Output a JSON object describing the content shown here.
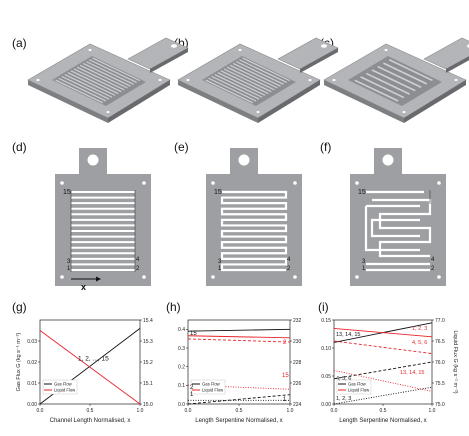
{
  "panel_labels": {
    "a": "(a)",
    "b": "(b)",
    "c": "(c)",
    "d": "(d)",
    "e": "(e)",
    "f": "(f)",
    "g": "(g)",
    "h": "(h)",
    "i": "(i)"
  },
  "plate_annotations": {
    "d": {
      "top": "15",
      "right": "4",
      "right2": "2",
      "left1": "3",
      "left2": "1",
      "axis_x": "x"
    },
    "e": {
      "top": "15",
      "right": "4",
      "right2": "2",
      "left1": "3",
      "left2": "1"
    },
    "f": {
      "top": "15",
      "right": "4",
      "right2": "2",
      "left1": "3",
      "left2": "1"
    }
  },
  "colors": {
    "gas": "#111111",
    "liquid": "#e8232a",
    "plate": "#9e9fa2",
    "channel": "#ffffff"
  },
  "chart_data": [
    {
      "type": "line",
      "panel": "(g)",
      "xlabel": "Channel Length Normalised, x",
      "ylabel": "Gas Flux G (kg s⁻¹ m⁻²)",
      "y2label": "",
      "xlim": [
        0.0,
        1.0
      ],
      "ylim": [
        0.0,
        0.04
      ],
      "y2lim": [
        15.0,
        15.4
      ],
      "x_ticks": [
        "0.0",
        "0.5",
        "1.0"
      ],
      "y_ticks": [
        "0.00",
        "0.01",
        "0.02",
        "0.03"
      ],
      "y2_ticks": [
        "15.0",
        "15.1",
        "15.2",
        "15.3",
        "15.4"
      ],
      "legend": [
        "Gas Flow",
        "Liquid Flow"
      ],
      "annotation": "1, 2, ..., 15",
      "series": [
        {
          "name": "Gas Flow",
          "axis": "left",
          "x": [
            0.0,
            1.0
          ],
          "y": [
            0.0,
            0.036
          ]
        },
        {
          "name": "Liquid Flow",
          "axis": "right",
          "x": [
            0.0,
            1.0
          ],
          "y": [
            15.35,
            15.0
          ]
        }
      ]
    },
    {
      "type": "line",
      "panel": "(h)",
      "xlabel": "Length Serpentine Normalised, x",
      "ylabel": "",
      "y2label": "",
      "xlim": [
        0.0,
        1.0
      ],
      "ylim": [
        0.0,
        0.45
      ],
      "y2lim": [
        224,
        232
      ],
      "x_ticks": [
        "0.0",
        "0.5",
        "1.0"
      ],
      "y_ticks": [
        "0.0",
        "0.1",
        "0.2",
        "0.3",
        "0.4"
      ],
      "y2_ticks": [
        "224",
        "226",
        "228",
        "230",
        "232"
      ],
      "legend": [
        "Gas Flow",
        "Liquid Flow"
      ],
      "annotations": [
        "15",
        "1",
        "2",
        "15",
        "2",
        "1"
      ],
      "series": [
        {
          "name": "Gas Flow",
          "axis": "left",
          "x": [
            0.0,
            1.0
          ],
          "y": [
            0.39,
            0.4
          ]
        },
        {
          "name": "Gas Flow",
          "axis": "left",
          "x": [
            0.0,
            1.0
          ],
          "y": [
            0.0,
            0.05
          ]
        },
        {
          "name": "Gas Flow",
          "axis": "left",
          "x": [
            0.0,
            1.0
          ],
          "y": [
            0.02,
            0.02
          ]
        },
        {
          "name": "Liquid Flow",
          "axis": "right",
          "x": [
            0.0,
            1.0
          ],
          "y": [
            230.5,
            230.3
          ]
        },
        {
          "name": "Liquid Flow",
          "axis": "right",
          "x": [
            0.0,
            1.0
          ],
          "y": [
            230.2,
            229.9
          ]
        },
        {
          "name": "Liquid Flow",
          "axis": "right",
          "x": [
            0.0,
            1.0
          ],
          "y": [
            225.8,
            225.4
          ]
        }
      ]
    },
    {
      "type": "line",
      "panel": "(i)",
      "xlabel": "Length Serpentine Normalised, x",
      "ylabel": "",
      "y2label": "Liquid Flux G (kg s⁻¹ m⁻²)",
      "xlim": [
        0.0,
        1.0
      ],
      "ylim": [
        0.0,
        0.15
      ],
      "y2lim": [
        75.0,
        77.0
      ],
      "x_ticks": [
        "0.0",
        "0.5",
        "1.0"
      ],
      "y_ticks": [
        "0.00",
        "0.05",
        "0.10",
        "0.15"
      ],
      "y2_ticks": [
        "75.0",
        "75.5",
        "76.0",
        "76.5",
        "77.0"
      ],
      "legend": [
        "Gas Flow",
        "Liquid Flow"
      ],
      "annotations": [
        "1, 2, 3",
        "13, 14, 15",
        "4, 5, 6",
        "1, 2, 3",
        "4, 5, 6",
        "13, 14, 15"
      ],
      "series": [
        {
          "name": "Gas Flow",
          "axis": "left",
          "x": [
            0.0,
            1.0
          ],
          "y": [
            0.11,
            0.145
          ]
        },
        {
          "name": "Gas Flow",
          "axis": "left",
          "x": [
            0.0,
            1.0
          ],
          "y": [
            0.045,
            0.075
          ]
        },
        {
          "name": "Gas Flow",
          "axis": "left",
          "x": [
            0.0,
            1.0
          ],
          "y": [
            0.0,
            0.03
          ]
        },
        {
          "name": "Liquid Flow",
          "axis": "right",
          "x": [
            0.0,
            1.0
          ],
          "y": [
            76.8,
            76.6
          ]
        },
        {
          "name": "Liquid Flow",
          "axis": "right",
          "x": [
            0.0,
            1.0
          ],
          "y": [
            76.5,
            76.2
          ]
        },
        {
          "name": "Liquid Flow",
          "axis": "right",
          "x": [
            0.0,
            1.0
          ],
          "y": [
            75.8,
            75.3
          ]
        }
      ]
    }
  ]
}
